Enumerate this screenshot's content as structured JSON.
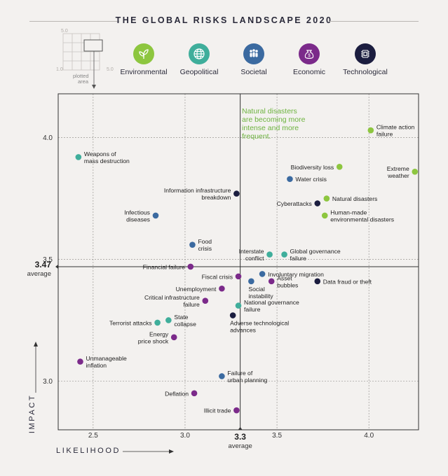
{
  "title": "THE GLOBAL RISKS LANDSCAPE 2020",
  "legend_box": {
    "top_value": "5.0",
    "bottom_value": "1.0",
    "right_value": "5.0",
    "caption_line1": "plotted",
    "caption_line2": "area"
  },
  "categories": [
    {
      "name": "Environmental",
      "color": "#8dc63f",
      "icon": "leaf-icon"
    },
    {
      "name": "Geopolitical",
      "color": "#3fae9b",
      "icon": "globe-icon"
    },
    {
      "name": "Societal",
      "color": "#3b6aa0",
      "icon": "people-icon"
    },
    {
      "name": "Economic",
      "color": "#7b2a8a",
      "icon": "money-bag-icon"
    },
    {
      "name": "Technological",
      "color": "#1b1d3f",
      "icon": "chip-icon"
    }
  ],
  "annotation": "Natural disasters are becoming more intense and more frequent.",
  "average_x_label": "3.3",
  "average_x_word": "average",
  "average_y_label": "3.47",
  "average_y_word": "average",
  "chart_data": {
    "type": "scatter",
    "title": "THE GLOBAL RISKS LANDSCAPE 2020",
    "xlabel": "LIKELIHOOD",
    "ylabel": "IMPACT",
    "xlim": [
      2.31,
      4.27
    ],
    "ylim": [
      2.8,
      4.18
    ],
    "x_ticks": [
      2.5,
      3.0,
      3.5,
      4.0
    ],
    "x_tick_labels": [
      "2.5",
      "3.0",
      "3.5",
      "4.0"
    ],
    "y_ticks": [
      3.0,
      3.5,
      4.0
    ],
    "y_tick_labels": [
      "3.0",
      "3.5",
      "4.0"
    ],
    "x_average": 3.3,
    "y_average": 3.47,
    "points": [
      {
        "label": "Climate action failure",
        "lines": [
          "Climate action",
          "failure"
        ],
        "x": 4.01,
        "y": 4.03,
        "category": "Environmental",
        "align": "right"
      },
      {
        "label": "Weapons of mass destruction",
        "lines": [
          "Weapons of",
          "mass destruction"
        ],
        "x": 2.42,
        "y": 3.92,
        "category": "Geopolitical",
        "align": "right"
      },
      {
        "label": "Biodiversity loss",
        "lines": [
          "Biodiversity loss"
        ],
        "x": 3.84,
        "y": 3.88,
        "category": "Environmental",
        "align": "left"
      },
      {
        "label": "Extreme weather",
        "lines": [
          "Extreme",
          "weather"
        ],
        "x": 4.25,
        "y": 3.86,
        "category": "Environmental",
        "align": "left"
      },
      {
        "label": "Water crisis",
        "lines": [
          "Water crisis"
        ],
        "x": 3.57,
        "y": 3.83,
        "category": "Societal",
        "align": "right"
      },
      {
        "label": "Information infrastructure breakdown",
        "lines": [
          "Information infrastructure",
          "breakdown"
        ],
        "x": 3.28,
        "y": 3.77,
        "category": "Technological",
        "align": "left"
      },
      {
        "label": "Natural disasters",
        "lines": [
          "Natural disasters"
        ],
        "x": 3.77,
        "y": 3.75,
        "category": "Environmental",
        "align": "right"
      },
      {
        "label": "Cyberattacks",
        "lines": [
          "Cyberattacks"
        ],
        "x": 3.72,
        "y": 3.73,
        "category": "Technological",
        "align": "left"
      },
      {
        "label": "Infectious diseases",
        "lines": [
          "Infectious",
          "diseases"
        ],
        "x": 2.84,
        "y": 3.68,
        "category": "Societal",
        "align": "left"
      },
      {
        "label": "Human-made environmental disasters",
        "lines": [
          "Human-made",
          "environmental disasters"
        ],
        "x": 3.76,
        "y": 3.68,
        "category": "Environmental",
        "align": "right"
      },
      {
        "label": "Food crisis",
        "lines": [
          "Food",
          "crisis"
        ],
        "x": 3.04,
        "y": 3.56,
        "category": "Societal",
        "align": "right"
      },
      {
        "label": "Interstate conflict",
        "lines": [
          "Interstate",
          "conflict"
        ],
        "x": 3.46,
        "y": 3.52,
        "category": "Geopolitical",
        "align": "left"
      },
      {
        "label": "Global governance failure",
        "lines": [
          "Global governance",
          "failure"
        ],
        "x": 3.54,
        "y": 3.52,
        "category": "Geopolitical",
        "align": "right"
      },
      {
        "label": "Financial failure",
        "lines": [
          "Financial failure"
        ],
        "x": 3.03,
        "y": 3.47,
        "category": "Economic",
        "align": "left"
      },
      {
        "label": "Involuntary migration",
        "lines": [
          "Involuntary migration"
        ],
        "x": 3.42,
        "y": 3.44,
        "category": "Societal",
        "align": "right"
      },
      {
        "label": "Fiscal crisis",
        "lines": [
          "Fiscal crisis"
        ],
        "x": 3.29,
        "y": 3.43,
        "category": "Economic",
        "align": "left"
      },
      {
        "label": "Data fraud or theft",
        "lines": [
          "Data fraud or theft"
        ],
        "x": 3.72,
        "y": 3.41,
        "category": "Technological",
        "align": "right"
      },
      {
        "label": "Asset bubbles",
        "lines": [
          "Asset",
          "bubbles"
        ],
        "x": 3.47,
        "y": 3.41,
        "category": "Economic",
        "align": "right"
      },
      {
        "label": "Social instability",
        "lines": [
          "Social",
          "instability"
        ],
        "x": 3.36,
        "y": 3.41,
        "category": "Societal",
        "align": "below"
      },
      {
        "label": "Unemployment",
        "lines": [
          "Unemployment"
        ],
        "x": 3.2,
        "y": 3.38,
        "category": "Economic",
        "align": "left"
      },
      {
        "label": "Critical infrastructure failure",
        "lines": [
          "Critical infrastructure",
          "failure"
        ],
        "x": 3.11,
        "y": 3.33,
        "category": "Economic",
        "align": "left"
      },
      {
        "label": "National governance failure",
        "lines": [
          "National governance",
          "failure"
        ],
        "x": 3.29,
        "y": 3.31,
        "category": "Geopolitical",
        "align": "right"
      },
      {
        "label": "Adverse technological advances",
        "lines": [
          "Adverse technological",
          "advances"
        ],
        "x": 3.26,
        "y": 3.27,
        "category": "Technological",
        "align": "below"
      },
      {
        "label": "State collapse",
        "lines": [
          "State",
          "collapse"
        ],
        "x": 2.91,
        "y": 3.25,
        "category": "Geopolitical",
        "align": "right"
      },
      {
        "label": "Terrorist attacks",
        "lines": [
          "Terrorist attacks"
        ],
        "x": 2.85,
        "y": 3.24,
        "category": "Geopolitical",
        "align": "left"
      },
      {
        "label": "Energy price shock",
        "lines": [
          "Energy",
          "price shock"
        ],
        "x": 2.94,
        "y": 3.18,
        "category": "Economic",
        "align": "left"
      },
      {
        "label": "Unmanageable inflation",
        "lines": [
          "Unmanageable",
          "inflation"
        ],
        "x": 2.43,
        "y": 3.08,
        "category": "Economic",
        "align": "right"
      },
      {
        "label": "Failure of urban planning",
        "lines": [
          "Failure of",
          "urban planning"
        ],
        "x": 3.2,
        "y": 3.02,
        "category": "Societal",
        "align": "right"
      },
      {
        "label": "Deflation",
        "lines": [
          "Deflation"
        ],
        "x": 3.05,
        "y": 2.95,
        "category": "Economic",
        "align": "left"
      },
      {
        "label": "Illicit trade",
        "lines": [
          "Illicit trade"
        ],
        "x": 3.28,
        "y": 2.88,
        "category": "Economic",
        "align": "left"
      }
    ]
  }
}
